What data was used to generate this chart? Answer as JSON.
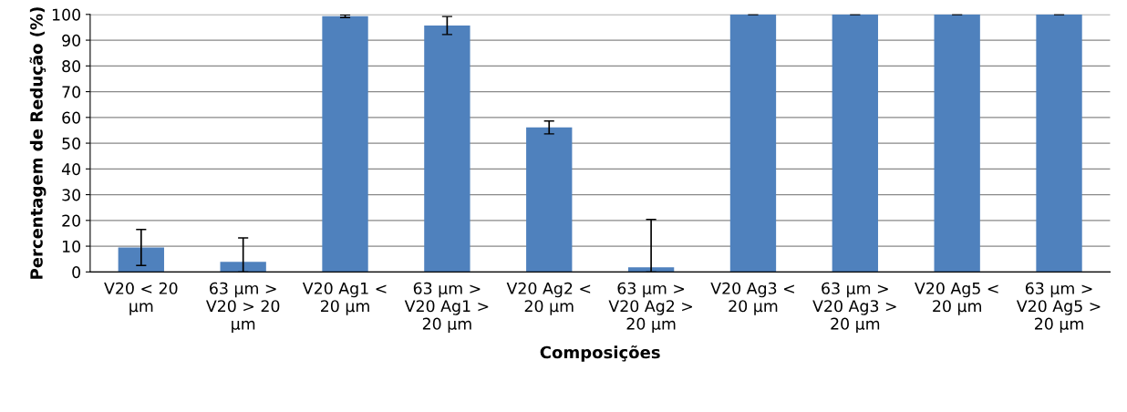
{
  "chart_data": {
    "type": "bar",
    "xlabel": "Composições",
    "ylabel": "Percentagem de Redução (%)",
    "categories": [
      "V20 < 20\nµm",
      "63 µm >\nV20 > 20\nµm",
      "V20 Ag1 <\n20 µm",
      "63 µm >\nV20 Ag1 >\n20 µm",
      "V20 Ag2 <\n20 µm",
      "63 µm >\nV20 Ag2 >\n20 µm",
      "V20 Ag3 <\n20 µm",
      "63 µm >\nV20 Ag3 >\n20 µm",
      "V20 Ag5 <\n20 µm",
      "63 µm >\nV20 Ag5 >\n20 µm"
    ],
    "values": [
      9.5,
      3.9,
      99.3,
      95.7,
      56.1,
      1.8,
      100,
      100,
      100,
      100
    ],
    "errors": [
      7,
      [
        0,
        13.2
      ],
      0.5,
      3.5,
      2.5,
      [
        0,
        20.4
      ],
      0,
      0,
      0,
      0
    ],
    "color": "#4f81bd",
    "ylim": [
      0,
      100
    ],
    "yticks": [
      0,
      10,
      20,
      30,
      40,
      50,
      60,
      70,
      80,
      90,
      100
    ],
    "grid": "y",
    "legend": false
  }
}
